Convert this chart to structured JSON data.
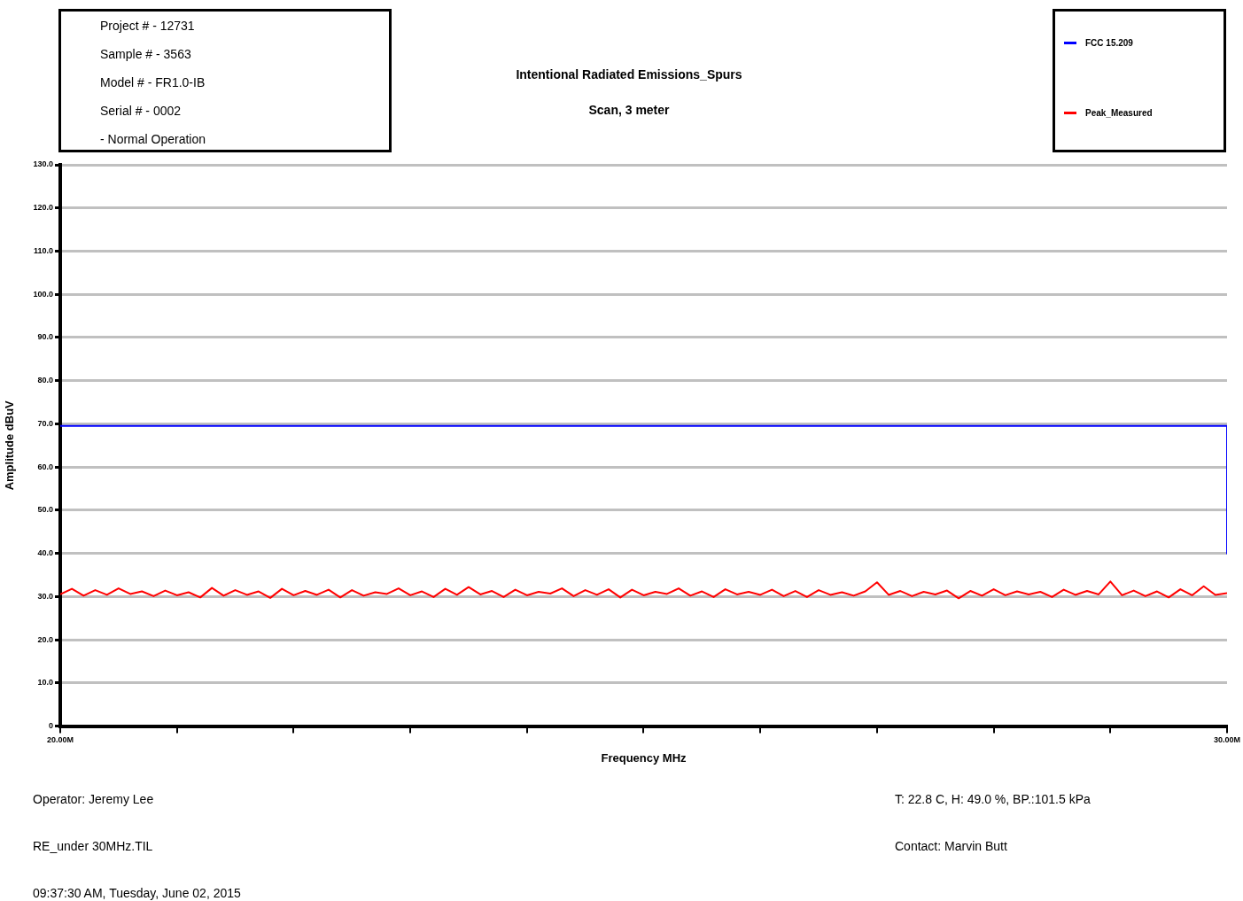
{
  "chart_data": {
    "type": "line",
    "title": "Intentional Radiated Emissions_Spurs",
    "subtitle": "Scan, 3 meter",
    "xlabel": "Frequency MHz",
    "ylabel": "Amplitude dBuV",
    "annotations": [
      "Project # - 12731",
      "Sample # - 3563",
      "Model # - FR1.0-IB",
      "Serial # - 0002",
      " - Normal Operation",
      "Operator: Jeremy Lee",
      "RE_under 30MHz.TIL",
      "09:37:30 AM, Tuesday, June 02, 2015",
      "T: 22.8 C, H: 49.0 %, BP.:101.5 kPa",
      "Contact: Marvin Butt"
    ],
    "series": [
      {
        "name": "FCC 15.209",
        "color": "#0000ff",
        "x": [
          20,
          30,
          30
        ],
        "values": [
          69.5,
          69.5,
          40
        ]
      },
      {
        "name": "Peak_Measured",
        "color": "#ff0000",
        "x": [
          20,
          20.1,
          20.2,
          20.3,
          20.4,
          20.5,
          20.6,
          20.7,
          20.8,
          20.9,
          21,
          21.1,
          21.2,
          21.3,
          21.4,
          21.5,
          21.6,
          21.7,
          21.8,
          21.9,
          22,
          22.1,
          22.2,
          22.3,
          22.4,
          22.5,
          22.6,
          22.7,
          22.8,
          22.9,
          23,
          23.1,
          23.2,
          23.3,
          23.4,
          23.5,
          23.6,
          23.7,
          23.8,
          23.9,
          24,
          24.1,
          24.2,
          24.3,
          24.4,
          24.5,
          24.6,
          24.7,
          24.8,
          24.9,
          25,
          25.1,
          25.2,
          25.3,
          25.4,
          25.5,
          25.6,
          25.7,
          25.8,
          25.9,
          26,
          26.1,
          26.2,
          26.3,
          26.4,
          26.5,
          26.6,
          26.7,
          26.8,
          26.9,
          27,
          27.1,
          27.2,
          27.3,
          27.4,
          27.5,
          27.6,
          27.7,
          27.8,
          27.9,
          28,
          28.1,
          28.2,
          28.3,
          28.4,
          28.5,
          28.6,
          28.7,
          28.8,
          28.9,
          29,
          29.1,
          29.2,
          29.3,
          29.4,
          29.5,
          29.6,
          29.7,
          29.8,
          29.9,
          30
        ],
        "values": [
          30.5,
          31.8,
          30.2,
          31.5,
          30.4,
          31.9,
          30.6,
          31.2,
          30.1,
          31.4,
          30.3,
          31,
          29.8,
          32,
          30.2,
          31.5,
          30.4,
          31.2,
          29.7,
          31.8,
          30.3,
          31.3,
          30.4,
          31.6,
          29.8,
          31.5,
          30.2,
          31,
          30.6,
          31.9,
          30.3,
          31.2,
          29.9,
          31.8,
          30.4,
          32.2,
          30.5,
          31.3,
          29.9,
          31.6,
          30.3,
          31.1,
          30.7,
          31.9,
          30.1,
          31.5,
          30.4,
          31.7,
          29.8,
          31.6,
          30.3,
          31.1,
          30.6,
          31.9,
          30.2,
          31.2,
          29.9,
          31.7,
          30.5,
          31.1,
          30.4,
          31.6,
          30.1,
          31.3,
          29.9,
          31.5,
          30.4,
          31,
          30.2,
          31.2,
          33.3,
          30.4,
          31.3,
          30.1,
          31.1,
          30.5,
          31.4,
          29.6,
          31.3,
          30.2,
          31.7,
          30.3,
          31.2,
          30.5,
          31.1,
          29.9,
          31.6,
          30.4,
          31.3,
          30.5,
          33.5,
          30.3,
          31.4,
          30.1,
          31.2,
          29.8,
          31.7,
          30.3,
          32.4,
          30.4,
          30.8
        ]
      }
    ],
    "xlim": [
      20,
      30
    ],
    "xticks": [
      {
        "value": 20,
        "label": "20.00M"
      },
      {
        "value": 21,
        "label": null
      },
      {
        "value": 22,
        "label": null
      },
      {
        "value": 23,
        "label": null
      },
      {
        "value": 24,
        "label": null
      },
      {
        "value": 25,
        "label": null
      },
      {
        "value": 26,
        "label": null
      },
      {
        "value": 27,
        "label": null
      },
      {
        "value": 28,
        "label": null
      },
      {
        "value": 29,
        "label": null
      },
      {
        "value": 30,
        "label": "30.00M"
      }
    ],
    "ylim": [
      0,
      130
    ],
    "yticks": [
      0,
      {
        "value": 10,
        "label": "10.0"
      },
      {
        "value": 20,
        "label": "20.0"
      },
      {
        "value": 30,
        "label": "30.0"
      },
      {
        "value": 40,
        "label": "40.0"
      },
      {
        "value": 50,
        "label": "50.0"
      },
      {
        "value": 60,
        "label": "60.0"
      },
      {
        "value": 70,
        "label": "70.0"
      },
      {
        "value": 80,
        "label": "80.0"
      },
      {
        "value": 90,
        "label": "90.0"
      },
      {
        "value": 100,
        "label": "100.0"
      },
      {
        "value": 110,
        "label": "110.0"
      },
      {
        "value": 120,
        "label": "120.0"
      },
      {
        "value": 130,
        "label": "130.0"
      }
    ],
    "grid": "y",
    "legend": "top right",
    "marker": "none",
    "line_style": "solid"
  }
}
